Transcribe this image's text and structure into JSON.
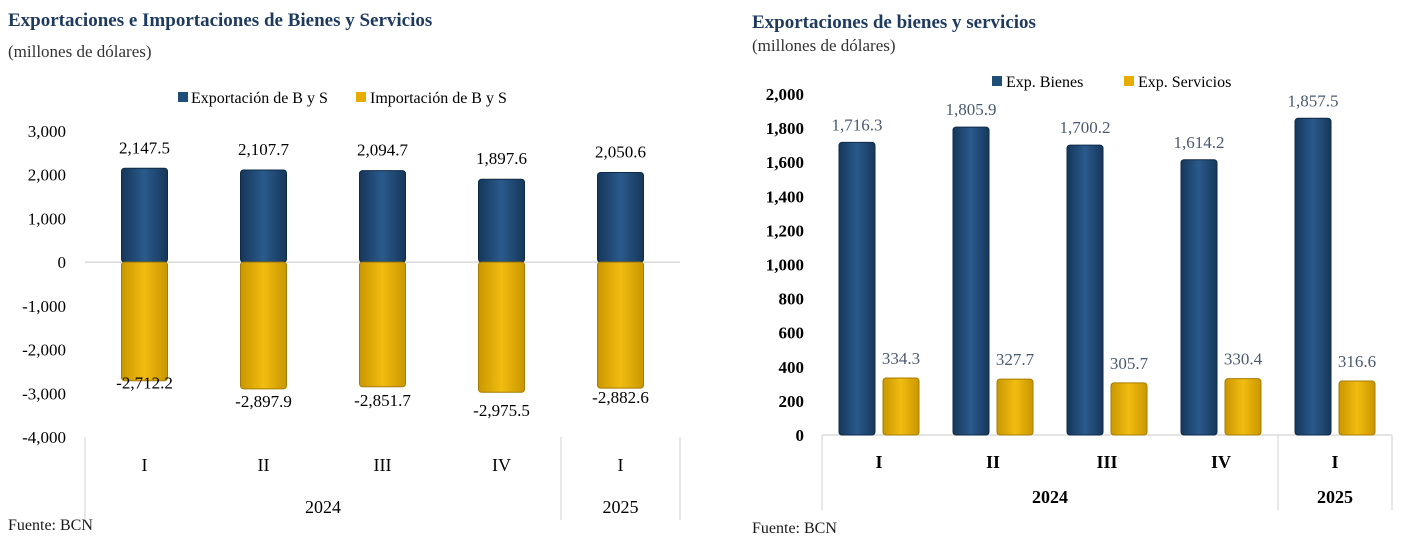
{
  "chart_data": [
    {
      "type": "bar",
      "title": "Exportaciones e Importaciones de Bienes y Servicios",
      "subtitle": "(millones de dólares)",
      "source": "Fuente: BCN",
      "categories": [
        "I",
        "II",
        "III",
        "IV",
        "I"
      ],
      "year_groups": [
        {
          "label": "2024",
          "span": 4
        },
        {
          "label": "2025",
          "span": 1
        }
      ],
      "series": [
        {
          "name": "Exportación de B y S",
          "values": [
            2147.5,
            2107.7,
            2094.7,
            1897.6,
            2050.6
          ],
          "labels": [
            "2,147.5",
            "2,107.7",
            "2,094.7",
            "1,897.6",
            "2,050.6"
          ]
        },
        {
          "name": "Importación de B y S",
          "values": [
            -2712.2,
            -2897.9,
            -2851.7,
            -2975.5,
            -2882.6
          ],
          "labels": [
            "-2,712.2",
            "-2,897.9",
            "-2,851.7",
            "-2,975.5",
            "-2,882.6"
          ]
        }
      ],
      "ylim": [
        -4000,
        3000
      ],
      "yticks": [
        "3,000",
        "2,000",
        "1,000",
        "0",
        "-1,000",
        "-2,000",
        "-3,000",
        "-4,000"
      ],
      "colors": {
        "export": "#1f4e79",
        "import": "#e6ad00"
      },
      "legend": "top",
      "grid": false
    },
    {
      "type": "bar",
      "title": "Exportaciones de bienes y servicios",
      "subtitle": "(millones de dólares)",
      "source": "Fuente: BCN",
      "categories": [
        "I",
        "II",
        "III",
        "IV",
        "I"
      ],
      "year_groups": [
        {
          "label": "2024",
          "span": 4
        },
        {
          "label": "2025",
          "span": 1
        }
      ],
      "series": [
        {
          "name": "Exp. Bienes",
          "values": [
            1716.3,
            1805.9,
            1700.2,
            1614.2,
            1857.5
          ],
          "labels": [
            "1,716.3",
            "1,805.9",
            "1,700.2",
            "1,614.2",
            "1,857.5"
          ]
        },
        {
          "name": "Exp. Servicios",
          "values": [
            334.3,
            327.7,
            305.7,
            330.4,
            316.6
          ],
          "labels": [
            "334.3",
            "327.7",
            "305.7",
            "330.4",
            "316.6"
          ]
        }
      ],
      "ylim": [
        0,
        2000
      ],
      "yticks": [
        "2,000",
        "1,800",
        "1,600",
        "1,400",
        "1,200",
        "1,000",
        "800",
        "600",
        "400",
        "200",
        "0"
      ],
      "colors": {
        "goods": "#1f4e79",
        "services": "#e6ad00"
      },
      "legend": "top",
      "grid": false
    }
  ]
}
